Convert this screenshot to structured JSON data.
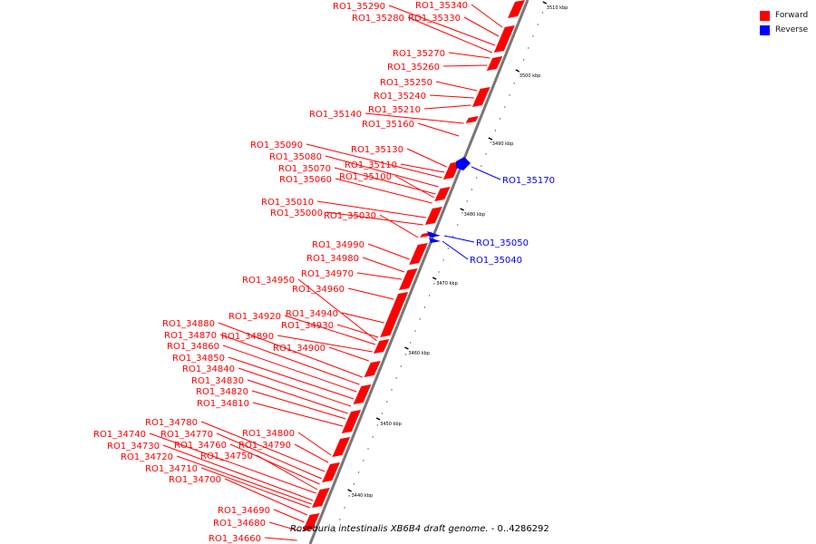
{
  "caption": {
    "organism": "Roseburia intestinalis XB6B4 draft genome.",
    "range": "- 0..4286292"
  },
  "legend": [
    {
      "label": "Forward",
      "color": "#ff0000"
    },
    {
      "label": "Reverse",
      "color": "#0000ff"
    }
  ],
  "colors": {
    "forward": "#ff0000",
    "reverse": "#0000ff",
    "backbone": "#777777"
  },
  "ticks": [
    "3440 kbp",
    "3450 kbp",
    "3460 kbp",
    "3470 kbp",
    "3480 kbp",
    "3490 kbp",
    "3500 kbp",
    "3510 kbp"
  ],
  "genes": [
    {
      "name": "RO1_35340",
      "strand": "forward"
    },
    {
      "name": "RO1_35330",
      "strand": "forward"
    },
    {
      "name": "RO1_35290",
      "strand": "forward"
    },
    {
      "name": "RO1_35280",
      "strand": "forward"
    },
    {
      "name": "RO1_35270",
      "strand": "forward"
    },
    {
      "name": "RO1_35260",
      "strand": "forward"
    },
    {
      "name": "RO1_35250",
      "strand": "forward"
    },
    {
      "name": "RO1_35240",
      "strand": "forward"
    },
    {
      "name": "RO1_35210",
      "strand": "forward"
    },
    {
      "name": "RO1_35140",
      "strand": "forward"
    },
    {
      "name": "RO1_35160",
      "strand": "forward"
    },
    {
      "name": "RO1_35090",
      "strand": "forward"
    },
    {
      "name": "RO1_35130",
      "strand": "forward"
    },
    {
      "name": "RO1_35080",
      "strand": "forward"
    },
    {
      "name": "RO1_35110",
      "strand": "forward"
    },
    {
      "name": "RO1_35070",
      "strand": "forward"
    },
    {
      "name": "RO1_35100",
      "strand": "forward"
    },
    {
      "name": "RO1_35060",
      "strand": "forward"
    },
    {
      "name": "RO1_35010",
      "strand": "forward"
    },
    {
      "name": "RO1_35000",
      "strand": "forward"
    },
    {
      "name": "RO1_35030",
      "strand": "forward"
    },
    {
      "name": "RO1_34990",
      "strand": "forward"
    },
    {
      "name": "RO1_34980",
      "strand": "forward"
    },
    {
      "name": "RO1_34970",
      "strand": "forward"
    },
    {
      "name": "RO1_34950",
      "strand": "forward"
    },
    {
      "name": "RO1_34960",
      "strand": "forward"
    },
    {
      "name": "RO1_34920",
      "strand": "forward"
    },
    {
      "name": "RO1_34940",
      "strand": "forward"
    },
    {
      "name": "RO1_34930",
      "strand": "forward"
    },
    {
      "name": "RO1_34880",
      "strand": "forward"
    },
    {
      "name": "RO1_34870",
      "strand": "forward"
    },
    {
      "name": "RO1_34890",
      "strand": "forward"
    },
    {
      "name": "RO1_34900",
      "strand": "forward"
    },
    {
      "name": "RO1_34860",
      "strand": "forward"
    },
    {
      "name": "RO1_34850",
      "strand": "forward"
    },
    {
      "name": "RO1_34840",
      "strand": "forward"
    },
    {
      "name": "RO1_34830",
      "strand": "forward"
    },
    {
      "name": "RO1_34820",
      "strand": "forward"
    },
    {
      "name": "RO1_34810",
      "strand": "forward"
    },
    {
      "name": "RO1_34780",
      "strand": "forward"
    },
    {
      "name": "RO1_34740",
      "strand": "forward"
    },
    {
      "name": "RO1_34770",
      "strand": "forward"
    },
    {
      "name": "RO1_34800",
      "strand": "forward"
    },
    {
      "name": "RO1_34730",
      "strand": "forward"
    },
    {
      "name": "RO1_34760",
      "strand": "forward"
    },
    {
      "name": "RO1_34790",
      "strand": "forward"
    },
    {
      "name": "RO1_34720",
      "strand": "forward"
    },
    {
      "name": "RO1_34750",
      "strand": "forward"
    },
    {
      "name": "RO1_34710",
      "strand": "forward"
    },
    {
      "name": "RO1_34700",
      "strand": "forward"
    },
    {
      "name": "RO1_34690",
      "strand": "forward"
    },
    {
      "name": "RO1_34680",
      "strand": "forward"
    },
    {
      "name": "RO1_34660",
      "strand": "forward"
    },
    {
      "name": "RO1_35170",
      "strand": "reverse"
    },
    {
      "name": "RO1_35050",
      "strand": "reverse"
    },
    {
      "name": "RO1_35040",
      "strand": "reverse"
    }
  ]
}
